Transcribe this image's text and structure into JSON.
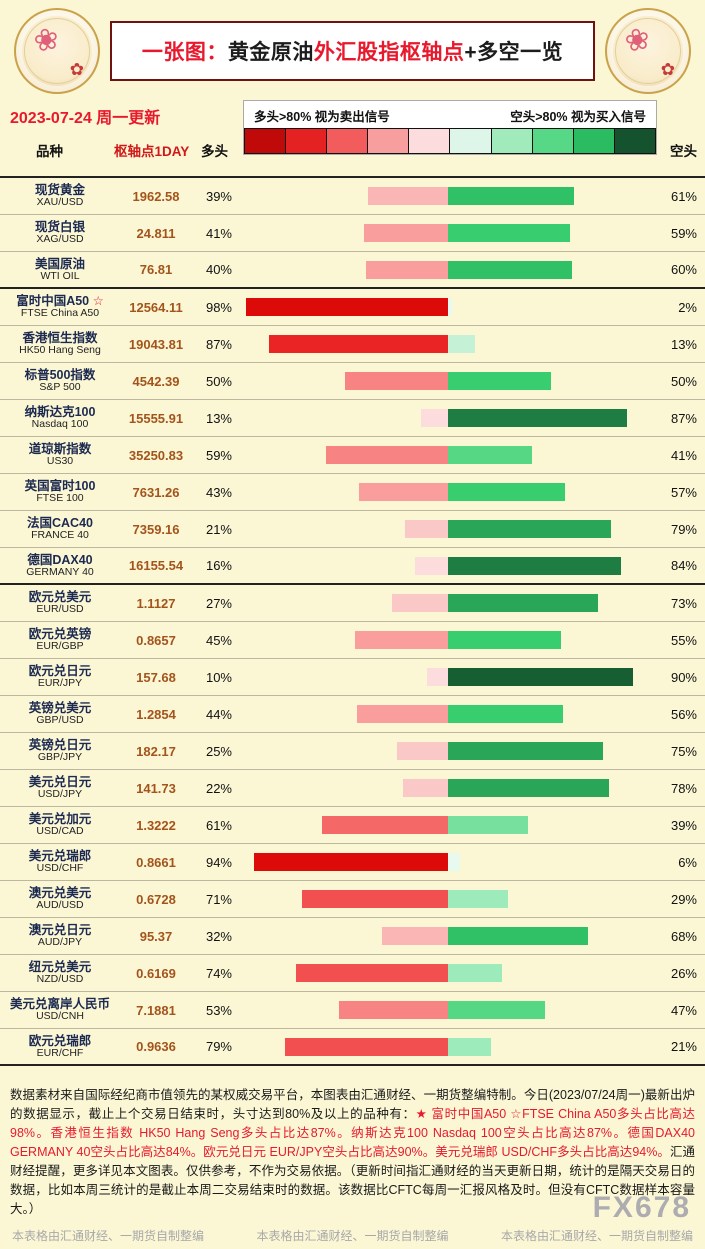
{
  "page": {
    "background": "#fbf7d5"
  },
  "header": {
    "title_segments": [
      {
        "text": "一张图：",
        "color": "#e8192c"
      },
      {
        "text": "黄金原油",
        "color": "#1c1c1c"
      },
      {
        "text": "外汇股指",
        "color": "#e8192c"
      },
      {
        "text": "枢轴点",
        "color": "#e8192c"
      },
      {
        "text": "+多空一览",
        "color": "#1c1c1c"
      }
    ],
    "logo_icon": "plate-flower-icon"
  },
  "subheader": {
    "date_text": "2023-07-24 周一更新",
    "signal_long": "多头>80% 视为卖出信号",
    "signal_short": "空头>80% 视为买入信号",
    "legend_colors": [
      "#c00a0a",
      "#e42222",
      "#f25c5c",
      "#f79e9e",
      "#fcdcdc",
      "#def6e9",
      "#a0eabc",
      "#57d886",
      "#2bbb60",
      "#15522e"
    ]
  },
  "table": {
    "col_product": "品种",
    "col_pivot": "枢轴点1DAY",
    "col_long": "多头",
    "col_short": "空头"
  },
  "chart_data": {
    "type": "bar",
    "variant": "diverging-horizontal",
    "title": "一张图：黄金原油外汇股指枢轴点+多空一览",
    "subtitle": "2023-07-24 周一更新",
    "series_labels": [
      "多头",
      "空头"
    ],
    "unit": "%",
    "xlim": [
      0,
      100
    ],
    "legend_note": [
      "多头>80% 视为卖出信号",
      "空头>80% 视为买入信号"
    ],
    "rows": [
      {
        "name_cn": "现货黄金",
        "code": "XAU/USD",
        "pivot": "1962.58",
        "long_pct": 39,
        "short_pct": 61,
        "group": "commodity",
        "group_end": false
      },
      {
        "name_cn": "现货白银",
        "code": "XAG/USD",
        "pivot": "24.811",
        "long_pct": 41,
        "short_pct": 59,
        "group": "commodity",
        "group_end": false
      },
      {
        "name_cn": "美国原油",
        "code": "WTI OIL",
        "pivot": "76.81",
        "long_pct": 40,
        "short_pct": 60,
        "group": "commodity",
        "group_end": true
      },
      {
        "name_cn": "富时中国A50",
        "star": "☆",
        "code": "FTSE China A50",
        "pivot": "12564.11",
        "long_pct": 98,
        "short_pct": 2,
        "group": "index",
        "group_end": false
      },
      {
        "name_cn": "香港恒生指数",
        "code": "HK50 Hang Seng",
        "pivot": "19043.81",
        "long_pct": 87,
        "short_pct": 13,
        "group": "index",
        "group_end": false
      },
      {
        "name_cn": "标普500指数",
        "code": "S&P 500",
        "pivot": "4542.39",
        "long_pct": 50,
        "short_pct": 50,
        "group": "index",
        "group_end": false
      },
      {
        "name_cn": "纳斯达克100",
        "code": "Nasdaq 100",
        "pivot": "15555.91",
        "long_pct": 13,
        "short_pct": 87,
        "group": "index",
        "group_end": false
      },
      {
        "name_cn": "道琼斯指数",
        "code": "US30",
        "pivot": "35250.83",
        "long_pct": 59,
        "short_pct": 41,
        "group": "index",
        "group_end": false
      },
      {
        "name_cn": "英国富时100",
        "code": "FTSE 100",
        "pivot": "7631.26",
        "long_pct": 43,
        "short_pct": 57,
        "group": "index",
        "group_end": false
      },
      {
        "name_cn": "法国CAC40",
        "code": "FRANCE 40",
        "pivot": "7359.16",
        "long_pct": 21,
        "short_pct": 79,
        "group": "index",
        "group_end": false
      },
      {
        "name_cn": "德国DAX40",
        "code": "GERMANY 40",
        "pivot": "16155.54",
        "long_pct": 16,
        "short_pct": 84,
        "group": "index",
        "group_end": true
      },
      {
        "name_cn": "欧元兑美元",
        "code": "EUR/USD",
        "pivot": "1.1127",
        "long_pct": 27,
        "short_pct": 73,
        "group": "forex",
        "group_end": false
      },
      {
        "name_cn": "欧元兑英镑",
        "code": "EUR/GBP",
        "pivot": "0.8657",
        "long_pct": 45,
        "short_pct": 55,
        "group": "forex",
        "group_end": false
      },
      {
        "name_cn": "欧元兑日元",
        "code": "EUR/JPY",
        "pivot": "157.68",
        "long_pct": 10,
        "short_pct": 90,
        "group": "forex",
        "group_end": false
      },
      {
        "name_cn": "英镑兑美元",
        "code": "GBP/USD",
        "pivot": "1.2854",
        "long_pct": 44,
        "short_pct": 56,
        "group": "forex",
        "group_end": false
      },
      {
        "name_cn": "英镑兑日元",
        "code": "GBP/JPY",
        "pivot": "182.17",
        "long_pct": 25,
        "short_pct": 75,
        "group": "forex",
        "group_end": false
      },
      {
        "name_cn": "美元兑日元",
        "code": "USD/JPY",
        "pivot": "141.73",
        "long_pct": 22,
        "short_pct": 78,
        "group": "forex",
        "group_end": false
      },
      {
        "name_cn": "美元兑加元",
        "code": "USD/CAD",
        "pivot": "1.3222",
        "long_pct": 61,
        "short_pct": 39,
        "group": "forex",
        "group_end": false
      },
      {
        "name_cn": "美元兑瑞郎",
        "code": "USD/CHF",
        "pivot": "0.8661",
        "long_pct": 94,
        "short_pct": 6,
        "group": "forex",
        "group_end": false
      },
      {
        "name_cn": "澳元兑美元",
        "code": "AUD/USD",
        "pivot": "0.6728",
        "long_pct": 71,
        "short_pct": 29,
        "group": "forex",
        "group_end": false
      },
      {
        "name_cn": "澳元兑日元",
        "code": "AUD/JPY",
        "pivot": "95.37",
        "long_pct": 32,
        "short_pct": 68,
        "group": "forex",
        "group_end": false
      },
      {
        "name_cn": "纽元兑美元",
        "code": "NZD/USD",
        "pivot": "0.6169",
        "long_pct": 74,
        "short_pct": 26,
        "group": "forex",
        "group_end": false
      },
      {
        "name_cn": "美元兑离岸人民币",
        "code": "USD/CNH",
        "pivot": "7.1881",
        "long_pct": 53,
        "short_pct": 47,
        "group": "forex",
        "group_end": false
      },
      {
        "name_cn": "欧元兑瑞郎",
        "code": "EUR/CHF",
        "pivot": "0.9636",
        "long_pct": 79,
        "short_pct": 21,
        "group": "forex",
        "group_end": true
      }
    ]
  },
  "footer": {
    "segments": [
      {
        "text": "数据素材来自国际经纪商市值领先的某权威交易平台，本图表由汇通财经、一期货整编特制。今日(2023/07/24周一)最新出炉的数据显示，截止上个交易日结束时，头寸达到80%及以上的品种有：",
        "color": "#1a1a1a"
      },
      {
        "text": "★ 富时中国A50 ☆FTSE China A50多头占比高达98%。香港恒生指数 HK50 Hang Seng多头占比达87%。纳斯达克100 Nasdaq 100空头占比高达87%。德国DAX40 GERMANY 40空头占比高达84%。欧元兑日元 EUR/JPY空头占比高达90%。美元兑瑞郎 USD/CHF多头占比高达94%。",
        "color": "#e8192c"
      },
      {
        "text": "汇通财经提醒，更多详见本文图表。仅供参考，不作为交易依据。（更新时间指汇通财经的当天更新日期，统计的是隔天交易日的数据，比如本周三统计的是截止本周二交易结束时的数据。该数据比CFTC每周一汇报风格及时。但没有CFTC数据样本容量大。）",
        "color": "#1a1a1a"
      }
    ],
    "watermark": "本表格由汇通财经、一期货自制整编",
    "watermark_count": 3,
    "brand": "FX678"
  }
}
